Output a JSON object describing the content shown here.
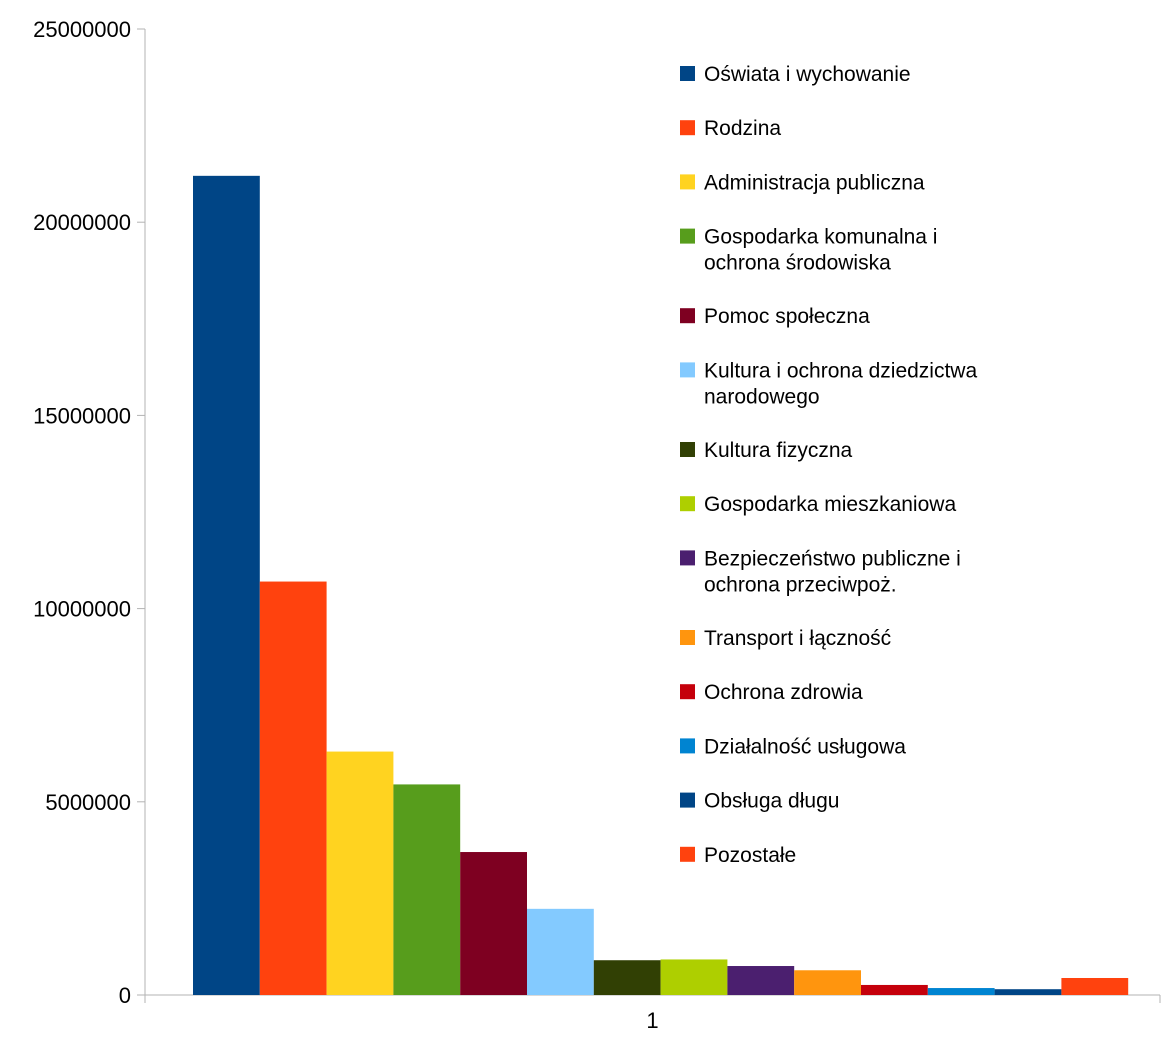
{
  "chart_data": {
    "type": "bar",
    "categories": [
      "1"
    ],
    "ylim": [
      0,
      25000000
    ],
    "y_ticks": [
      0,
      5000000,
      10000000,
      15000000,
      20000000,
      25000000
    ],
    "y_tick_labels": [
      "0",
      "5000000",
      "10000000",
      "15000000",
      "20000000",
      "25000000"
    ],
    "grid": false,
    "legend_position": "top-right",
    "series": [
      {
        "name": "Oświata i wychowanie",
        "values": [
          21200000
        ],
        "color": "#004586"
      },
      {
        "name": "Rodzina",
        "values": [
          10700000
        ],
        "color": "#ff420e"
      },
      {
        "name": "Administracja publiczna",
        "values": [
          6300000
        ],
        "color": "#ffd320"
      },
      {
        "name": "Gospodarka komunalna i ochrona środowiska",
        "legend_lines": [
          "Gospodarka komunalna i",
          "ochrona środowiska"
        ],
        "values": [
          5450000
        ],
        "color": "#579d1c"
      },
      {
        "name": "Pomoc społeczna",
        "values": [
          3700000
        ],
        "color": "#7e0021"
      },
      {
        "name": "Kultura i ochrona dziedzictwa narodowego",
        "legend_lines": [
          "Kultura i ochrona dziedzictwa",
          "narodowego"
        ],
        "values": [
          2230000
        ],
        "color": "#83caff"
      },
      {
        "name": "Kultura fizyczna",
        "values": [
          900000
        ],
        "color": "#314004"
      },
      {
        "name": "Gospodarka mieszkaniowa",
        "values": [
          920000
        ],
        "color": "#aecf00"
      },
      {
        "name": "Bezpieczeństwo publiczne i ochrona przeciwpoż.",
        "legend_lines": [
          "Bezpieczeństwo publiczne i",
          "ochrona przeciwpoż."
        ],
        "values": [
          750000
        ],
        "color": "#4b1f6f"
      },
      {
        "name": "Transport i łączność",
        "values": [
          640000
        ],
        "color": "#ff950e"
      },
      {
        "name": "Ochrona zdrowia",
        "values": [
          260000
        ],
        "color": "#c5000b"
      },
      {
        "name": "Działalność usługowa",
        "values": [
          180000
        ],
        "color": "#0084d1"
      },
      {
        "name": "Obsługa długu",
        "values": [
          150000
        ],
        "color": "#004586"
      },
      {
        "name": "Pozostałe",
        "values": [
          440000
        ],
        "color": "#ff420e"
      }
    ]
  }
}
